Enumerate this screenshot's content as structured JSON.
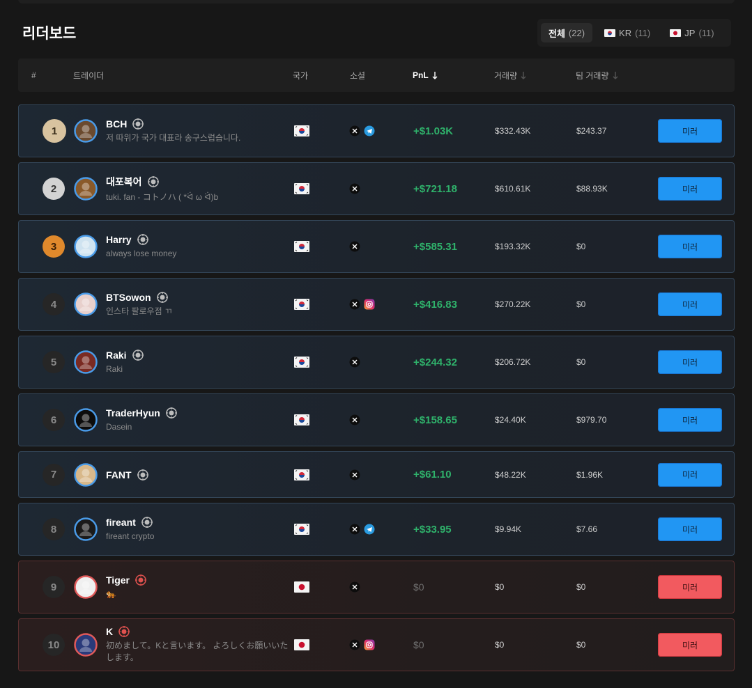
{
  "header": {
    "title": "리더보드"
  },
  "tabs": [
    {
      "label": "전체",
      "count": "(22)"
    },
    {
      "label": "KR",
      "count": "(11)"
    },
    {
      "label": "JP",
      "count": "(11)"
    }
  ],
  "columns": [
    {
      "label": "#"
    },
    {
      "label": "트레이더"
    },
    {
      "label": "국가"
    },
    {
      "label": "소셜"
    },
    {
      "label": "PnL",
      "sort": "active"
    },
    {
      "label": "거래량",
      "sort": "inactive"
    },
    {
      "label": "팀 거래량",
      "sort": "inactive"
    }
  ],
  "button_label": "미러",
  "rows": [
    {
      "rank": 1,
      "name": "BCH",
      "bio": "저 따위가 국가 대표라 송구스럽습니다.",
      "country": "KR",
      "socials": [
        "x",
        "telegram"
      ],
      "pnl": "+$1.03K",
      "volume": "$332.43K",
      "team_volume": "$243.37"
    },
    {
      "rank": 2,
      "name": "대포복어",
      "bio": "tuki. fan - コトノハ ( *ᐛ ω ᐛ)b",
      "country": "KR",
      "socials": [
        "x"
      ],
      "pnl": "+$721.18",
      "volume": "$610.61K",
      "team_volume": "$88.93K"
    },
    {
      "rank": 3,
      "name": "Harry",
      "bio": "always lose money",
      "country": "KR",
      "socials": [
        "x"
      ],
      "pnl": "+$585.31",
      "volume": "$193.32K",
      "team_volume": "$0"
    },
    {
      "rank": 4,
      "name": "BTSowon",
      "bio": "인스타 팔로우점 ㄲ",
      "country": "KR",
      "socials": [
        "x",
        "instagram"
      ],
      "pnl": "+$416.83",
      "volume": "$270.22K",
      "team_volume": "$0"
    },
    {
      "rank": 5,
      "name": "Raki",
      "bio": "Raki",
      "country": "KR",
      "socials": [
        "x"
      ],
      "pnl": "+$244.32",
      "volume": "$206.72K",
      "team_volume": "$0"
    },
    {
      "rank": 6,
      "name": "TraderHyun",
      "bio": "Dasein",
      "country": "KR",
      "socials": [
        "x"
      ],
      "pnl": "+$158.65",
      "volume": "$24.40K",
      "team_volume": "$979.70"
    },
    {
      "rank": 7,
      "name": "FANT",
      "country": "KR",
      "socials": [
        "x"
      ],
      "pnl": "+$61.10",
      "volume": "$48.22K",
      "team_volume": "$1.96K"
    },
    {
      "rank": 8,
      "name": "fireant",
      "bio": "fireant crypto",
      "country": "KR",
      "socials": [
        "x",
        "telegram"
      ],
      "pnl": "+$33.95",
      "volume": "$9.94K",
      "team_volume": "$7.66"
    },
    {
      "rank": 9,
      "name": "Tiger",
      "bio": "🐅",
      "country": "JP",
      "socials": [
        "x"
      ],
      "pnl": "$0",
      "volume": "$0",
      "team_volume": "$0"
    },
    {
      "rank": 10,
      "name": "K",
      "bio": "初めまして。Kと言います。 よろしくお願いいたします。",
      "country": "JP",
      "socials": [
        "x",
        "instagram"
      ],
      "pnl": "$0",
      "volume": "$0",
      "team_volume": "$0"
    }
  ]
}
